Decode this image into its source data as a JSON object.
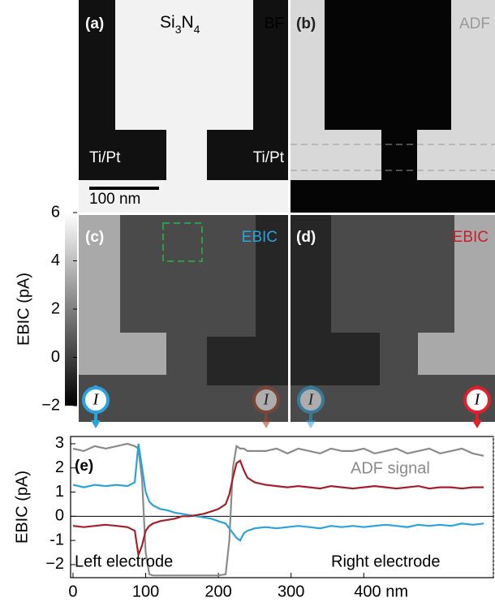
{
  "panels": {
    "a": {
      "label": "(a)",
      "material": "Si",
      "material_sub1": "3",
      "material_mid": "N",
      "material_sub2": "4",
      "mode": "BF",
      "electrode_left": "Ti/Pt",
      "electrode_right": "Ti/Pt",
      "scale_bar": "100 nm"
    },
    "b": {
      "label": "(b)",
      "mode": "ADF"
    },
    "c": {
      "label": "(c)",
      "mode": "EBIC"
    },
    "d": {
      "label": "(d)",
      "mode": "EBIC"
    }
  },
  "icons": [
    "I",
    "I",
    "I",
    "I"
  ],
  "colorbar": {
    "label": "EBIC (pA)",
    "lim": [
      -2,
      6
    ],
    "ticks": [
      6,
      4,
      2,
      0,
      {
        "value": -2,
        "label": "−2"
      }
    ]
  },
  "chart_data": {
    "type": "line",
    "panel_label": "(e)",
    "ylabel": "EBIC (pA)",
    "x": [
      0,
      15,
      30,
      45,
      60,
      75,
      85,
      90,
      95,
      100,
      105,
      110,
      120,
      130,
      140,
      150,
      160,
      170,
      180,
      190,
      200,
      210,
      215,
      220,
      225,
      230,
      235,
      240,
      250,
      265,
      280,
      295,
      310,
      325,
      340,
      355,
      370,
      385,
      400,
      415,
      430,
      445,
      460,
      475,
      490,
      505,
      520,
      535,
      550,
      565
    ],
    "series": [
      {
        "name": "ADF signal",
        "color": "#8a8a8a",
        "values": [
          2.8,
          2.7,
          2.9,
          2.8,
          2.9,
          3.0,
          2.9,
          2.8,
          1.5,
          -1.5,
          -2.4,
          -2.45,
          -2.45,
          -2.45,
          -2.45,
          -2.45,
          -2.45,
          -2.45,
          -2.45,
          -2.45,
          -2.45,
          -2.4,
          -1.0,
          2.0,
          2.9,
          2.8,
          2.8,
          2.7,
          2.7,
          2.7,
          2.8,
          2.6,
          2.8,
          2.7,
          2.6,
          2.8,
          2.7,
          2.7,
          2.8,
          2.6,
          2.7,
          2.8,
          2.6,
          2.7,
          2.8,
          2.6,
          2.7,
          2.8,
          2.6,
          2.5
        ]
      },
      {
        "name": "Left electrode",
        "color": "#29a3dc",
        "values": [
          1.3,
          1.2,
          1.3,
          1.25,
          1.3,
          1.25,
          1.4,
          3.0,
          2.0,
          1.0,
          0.6,
          0.45,
          0.3,
          0.25,
          0.15,
          0.1,
          0.05,
          0,
          -0.05,
          -0.1,
          -0.2,
          -0.3,
          -0.5,
          -0.7,
          -0.9,
          -1.0,
          -0.7,
          -0.6,
          -0.5,
          -0.45,
          -0.5,
          -0.45,
          -0.4,
          -0.45,
          -0.5,
          -0.4,
          -0.45,
          -0.4,
          -0.45,
          -0.4,
          -0.35,
          -0.4,
          -0.45,
          -0.35,
          -0.4,
          -0.35,
          -0.4,
          -0.3,
          -0.35,
          -0.3
        ]
      },
      {
        "name": "Right electrode",
        "color": "#a3202a",
        "values": [
          -0.4,
          -0.45,
          -0.4,
          -0.35,
          -0.4,
          -0.45,
          -0.6,
          -1.6,
          -1.2,
          -0.6,
          -0.4,
          -0.3,
          -0.2,
          -0.15,
          -0.1,
          0,
          0,
          0.05,
          0.1,
          0.2,
          0.3,
          0.5,
          0.9,
          1.6,
          2.2,
          2.3,
          1.9,
          1.6,
          1.4,
          1.3,
          1.25,
          1.2,
          1.25,
          1.2,
          1.15,
          1.25,
          1.2,
          1.15,
          1.2,
          1.25,
          1.2,
          1.15,
          1.2,
          1.25,
          1.15,
          1.2,
          1.2,
          1.15,
          1.2,
          1.2
        ]
      }
    ],
    "xlim": [
      -3.3,
      578.3
    ],
    "xticks": [
      0,
      100,
      200,
      300,
      {
        "value": 400,
        "label": "400 nm"
      }
    ],
    "ylim": [
      -2.54,
      3.3
    ],
    "yticks": [
      3,
      2,
      1,
      0,
      -1,
      {
        "value": -2,
        "label": "−2"
      }
    ],
    "zero_line": true
  }
}
